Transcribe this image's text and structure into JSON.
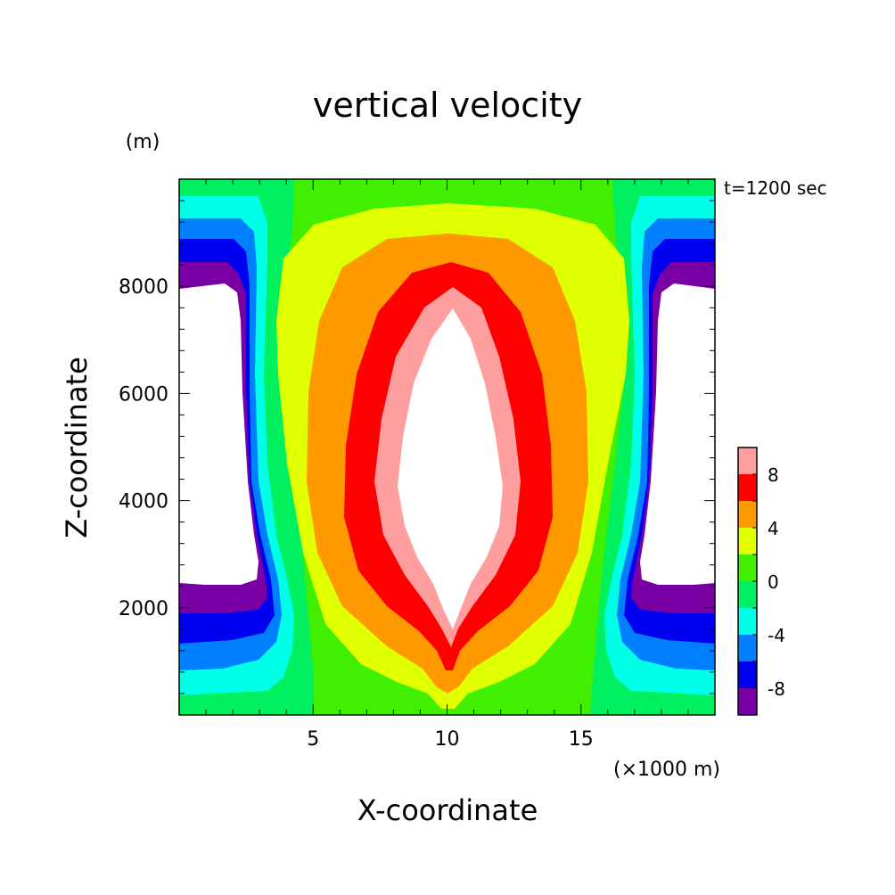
{
  "chart_data": {
    "type": "heatmap",
    "title": "vertical velocity",
    "xlabel": "X-coordinate",
    "ylabel": "Z-coordinate",
    "x_unit": "(×1000 m)",
    "y_unit": "(m)",
    "time_label": "t=1200 sec",
    "xlim": [
      0,
      20
    ],
    "ylim": [
      0,
      10000
    ],
    "x_ticks": [
      5,
      10,
      15
    ],
    "y_ticks": [
      2000,
      4000,
      6000,
      8000
    ],
    "colorbar": {
      "levels": [
        -10,
        -8,
        -6,
        -4,
        -2,
        0,
        2,
        4,
        6,
        8,
        10
      ],
      "tick_labels": [
        "-8",
        "-4",
        "0",
        "4",
        "8"
      ],
      "tick_values": [
        -8,
        -4,
        0,
        4,
        8
      ],
      "colors": [
        "#7a00a6",
        "#0000f0",
        "#0080ff",
        "#00ffe6",
        "#00f060",
        "#40f000",
        "#e0ff00",
        "#ff9900",
        "#ff0000",
        "#ff9e9e"
      ]
    }
  }
}
